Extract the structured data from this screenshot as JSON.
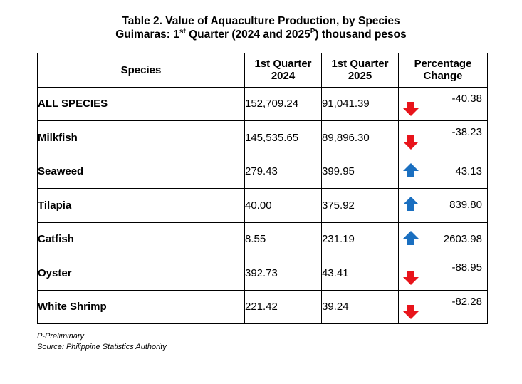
{
  "title": {
    "line1": "Table 2. Value of Aquaculture Production, by Species",
    "line2_prefix": "Guimaras: 1",
    "line2_sup1": "st",
    "line2_mid": " Quarter (2024 and 2025",
    "line2_sup2": "P",
    "line2_suffix": ") thousand pesos"
  },
  "headers": {
    "species": "Species",
    "q2024_line1": "1st Quarter",
    "q2024_line2": "2024",
    "q2025_line1": "1st Quarter",
    "q2025_line2": "2025",
    "pct_line1": "Percentage",
    "pct_line2": "Change"
  },
  "rows": [
    {
      "species": "ALL SPECIES",
      "q2024": "152,709.24",
      "q2025": "91,041.39",
      "pct": "-40.38",
      "trend": "down"
    },
    {
      "species": "Milkfish",
      "q2024": "145,535.65",
      "q2025": "89,896.30",
      "pct": "-38.23",
      "trend": "down"
    },
    {
      "species": "Seaweed",
      "q2024": "279.43",
      "q2025": "399.95",
      "pct": "43.13",
      "trend": "up"
    },
    {
      "species": "Tilapia",
      "q2024": "40.00",
      "q2025": "375.92",
      "pct": "839.80",
      "trend": "up"
    },
    {
      "species": "Catfish",
      "q2024": "8.55",
      "q2025": "231.19",
      "pct": "2603.98",
      "trend": "up"
    },
    {
      "species": "Oyster",
      "q2024": "392.73",
      "q2025": "43.41",
      "pct": "-88.95",
      "trend": "down"
    },
    {
      "species": "White Shrimp",
      "q2024": "221.42",
      "q2025": "39.24",
      "pct": "-82.28",
      "trend": "down"
    }
  ],
  "notes": {
    "preliminary": "P-Preliminary",
    "source": "Source: Philippine Statistics Authority"
  },
  "colors": {
    "down_arrow": "#e8141b",
    "up_arrow": "#1a6fc0"
  },
  "icons": {
    "down": "arrow-down-icon",
    "up": "arrow-up-icon"
  }
}
